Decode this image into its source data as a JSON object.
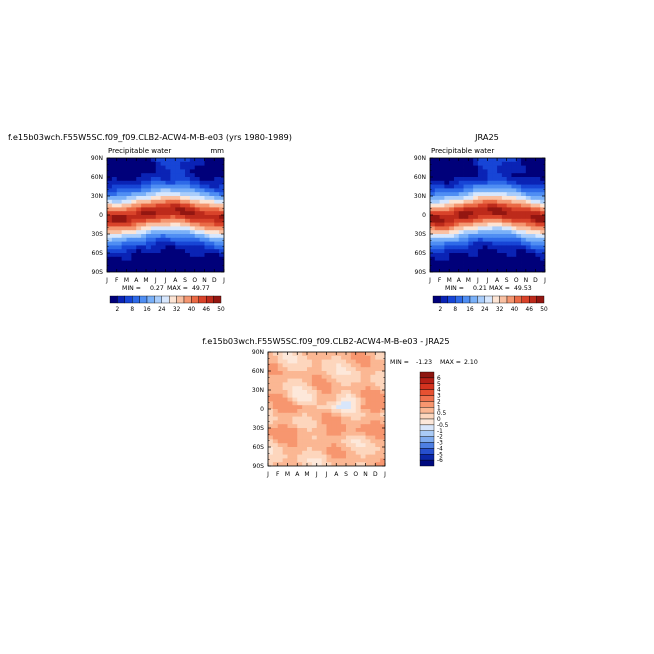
{
  "chart_data": [
    {
      "type": "heatmap",
      "title": "f.e15b03wch.F55W5SC.f09_f09.CLB2-ACW4-M-B-e03 (yrs 1980-1989)",
      "subtitle": "Precipitable water",
      "units": "mm",
      "x": [
        "J",
        "F",
        "M",
        "A",
        "M",
        "J",
        "J",
        "A",
        "S",
        "O",
        "N",
        "D",
        "J"
      ],
      "y_ticks": [
        "90N",
        "60N",
        "30N",
        "0",
        "30S",
        "60S",
        "90S"
      ],
      "ylim": [
        -90,
        90
      ],
      "min_label": "MIN =",
      "min_value": "0.27",
      "max_label": "MAX =",
      "max_value": "49.77",
      "colorbar": {
        "labels": [
          "2",
          "8",
          "16",
          "24",
          "32",
          "40",
          "46",
          "50"
        ],
        "colors": [
          "#00007a",
          "#0a23b5",
          "#1745d6",
          "#2e6ae8",
          "#4f8ef3",
          "#79b0f8",
          "#a9cdfb",
          "#d7e7fd",
          "#fce4d4",
          "#f9c0a2",
          "#f49670",
          "#ea6a45",
          "#d9432a",
          "#bd2a1b",
          "#931611"
        ]
      },
      "value_range": [
        0.27,
        49.77
      ]
    },
    {
      "type": "heatmap",
      "title": "JRA25",
      "subtitle": "Precipitable water",
      "x": [
        "J",
        "F",
        "M",
        "A",
        "M",
        "J",
        "J",
        "A",
        "S",
        "O",
        "N",
        "D",
        "J"
      ],
      "y_ticks": [
        "90N",
        "60N",
        "30N",
        "0",
        "30S",
        "60S",
        "90S"
      ],
      "ylim": [
        -90,
        90
      ],
      "min_label": "MIN =",
      "min_value": "0.21",
      "max_label": "MAX =",
      "max_value": "49.53",
      "colorbar": {
        "labels": [
          "2",
          "8",
          "16",
          "24",
          "32",
          "40",
          "46",
          "50"
        ],
        "colors": [
          "#00007a",
          "#0a23b5",
          "#1745d6",
          "#2e6ae8",
          "#4f8ef3",
          "#79b0f8",
          "#a9cdfb",
          "#d7e7fd",
          "#fce4d4",
          "#f9c0a2",
          "#f49670",
          "#ea6a45",
          "#d9432a",
          "#bd2a1b",
          "#931611"
        ]
      },
      "value_range": [
        0.21,
        49.53
      ]
    },
    {
      "type": "heatmap",
      "title": "f.e15b03wch.F55W5SC.f09_f09.CLB2-ACW4-M-B-e03 - JRA25",
      "x": [
        "J",
        "F",
        "M",
        "A",
        "M",
        "J",
        "J",
        "A",
        "S",
        "O",
        "N",
        "D",
        "J"
      ],
      "y_ticks": [
        "90N",
        "60N",
        "30N",
        "0",
        "30S",
        "60S",
        "90S"
      ],
      "ylim": [
        -90,
        90
      ],
      "min_label": "MIN =",
      "min_value": "-1.23",
      "max_label": "MAX =",
      "max_value": "2.10",
      "colorbar": {
        "labels": [
          "6",
          "5",
          "4",
          "3",
          "2",
          "1",
          "0.5",
          "0",
          "-0.5",
          "-1",
          "-2",
          "-3",
          "-4",
          "-5",
          "-6"
        ],
        "colors": [
          "#8e1610",
          "#b51f16",
          "#d4331f",
          "#e65131",
          "#f0724f",
          "#f7966f",
          "#fbb793",
          "#fdd6bd",
          "#fde8da",
          "#d8e6fb",
          "#aacbf6",
          "#7fabef",
          "#4e7fe3",
          "#264fce",
          "#0b27a8",
          "#000a7f"
        ]
      },
      "value_range": [
        -1.23,
        2.1
      ]
    }
  ]
}
